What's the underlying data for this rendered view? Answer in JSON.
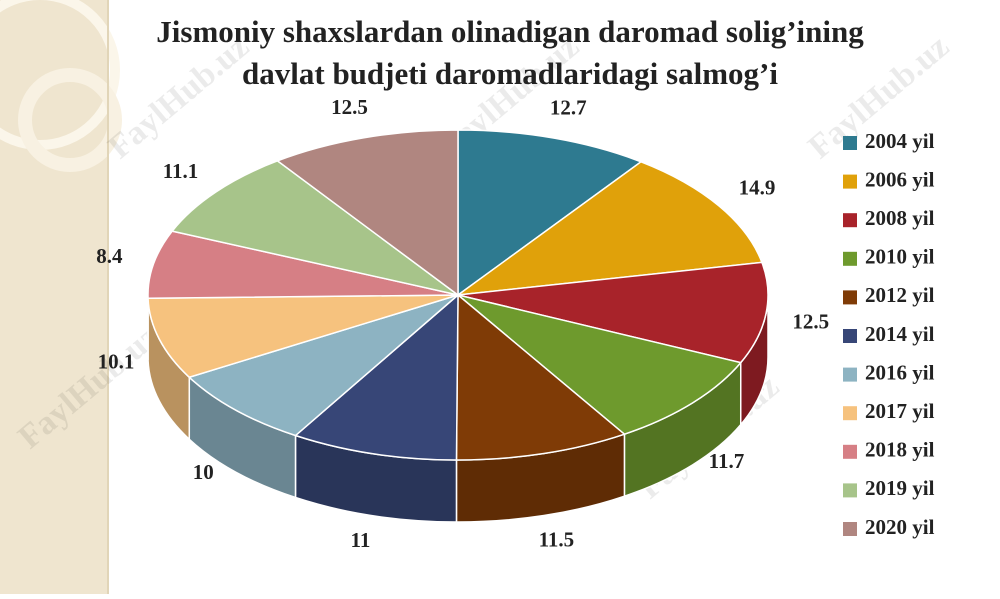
{
  "chart_data": {
    "type": "pie3d",
    "title": "Jismoniy shaxslardan olinadigan daromad solig’ining",
    "subtitle": "davlat budjeti daromadlaridagi salmog’i",
    "categories": [
      "2004 yil",
      "2006 yil",
      "2008 yil",
      "2010 yil",
      "2012 yil",
      "2014 yil",
      "2016 yil",
      "2017 yil",
      "2018 yil",
      "2019 yil",
      "2020 yil"
    ],
    "values": [
      12.7,
      14.9,
      12.5,
      11.7,
      11.5,
      11,
      10,
      10.1,
      8.4,
      11.1,
      12.5
    ],
    "colors": [
      "#2e7a90",
      "#e0a10a",
      "#a8232a",
      "#6e9a2d",
      "#7f3b06",
      "#374677",
      "#8db3c2",
      "#f6c27e",
      "#d67f85",
      "#a7c48a",
      "#b08680"
    ],
    "legend": "right",
    "watermark": "FaylHub.uz"
  }
}
